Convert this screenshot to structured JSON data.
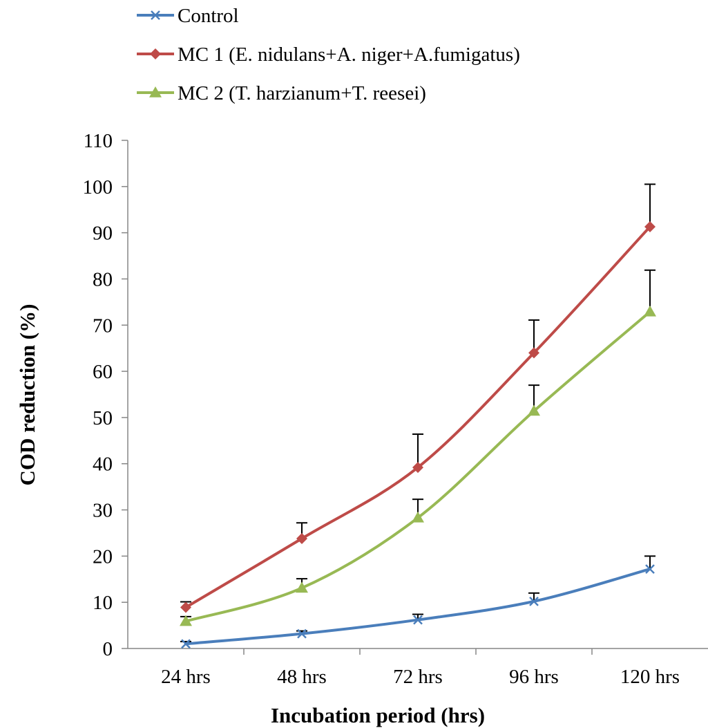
{
  "chart_data": {
    "type": "line",
    "xlabel": "Incubation period (hrs)",
    "ylabel": "COD reduction (%)",
    "categories": [
      "24 hrs",
      "48 hrs",
      "72 hrs",
      "96 hrs",
      "120 hrs"
    ],
    "ylim": [
      0,
      110
    ],
    "yticks": [
      0,
      10,
      20,
      30,
      40,
      50,
      60,
      70,
      80,
      90,
      100,
      110
    ],
    "grid": false,
    "legend_position": "top-left",
    "error_bars": "upper",
    "series": [
      {
        "name": "Control",
        "color": "#4a7ebb",
        "marker": "x",
        "values": [
          1.0,
          3.2,
          6.2,
          10.2,
          17.2
        ],
        "errors": [
          0.5,
          0.6,
          1.2,
          1.8,
          2.8
        ]
      },
      {
        "name": "MC 1 (E. nidulans+A. niger+A.fumigatus)",
        "color": "#be4b48",
        "marker": "diamond",
        "values": [
          8.9,
          23.8,
          39.2,
          64.0,
          91.3
        ],
        "errors": [
          1.2,
          3.4,
          7.2,
          7.1,
          9.2
        ]
      },
      {
        "name": "MC 2 (T. harzianum+T. reesei)",
        "color": "#98b954",
        "marker": "triangle",
        "values": [
          5.9,
          13.1,
          28.3,
          51.4,
          72.9
        ],
        "errors": [
          1.0,
          2.0,
          4.0,
          5.6,
          9.0
        ]
      }
    ]
  }
}
